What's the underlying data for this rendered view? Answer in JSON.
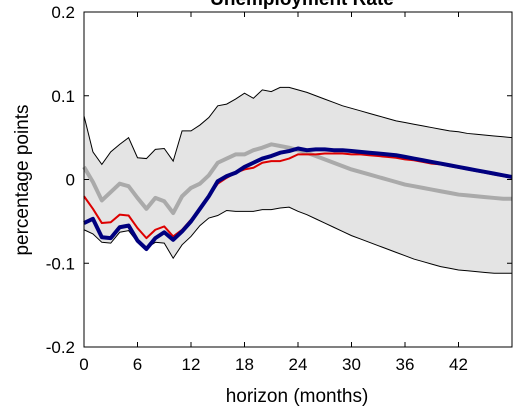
{
  "chart_data": {
    "type": "line",
    "title": "Unemployment Rate",
    "xlabel": "horizon (months)",
    "ylabel": "percentage points",
    "xlim": [
      0,
      48
    ],
    "ylim": [
      -0.2,
      0.2
    ],
    "xticks": [
      0,
      6,
      12,
      18,
      24,
      30,
      36,
      42
    ],
    "yticks": [
      -0.2,
      -0.1,
      0,
      0.1,
      0.2
    ],
    "ytick_labels": [
      "-0.2",
      "-0.1",
      "0",
      "0.1",
      "0.2"
    ],
    "grid": false,
    "legend": "none",
    "x": [
      0,
      1,
      2,
      3,
      4,
      5,
      6,
      7,
      8,
      9,
      10,
      11,
      12,
      13,
      14,
      15,
      16,
      17,
      18,
      19,
      20,
      21,
      22,
      23,
      24,
      25,
      26,
      27,
      28,
      29,
      30,
      31,
      32,
      33,
      34,
      35,
      36,
      37,
      38,
      39,
      40,
      41,
      42,
      43,
      44,
      45,
      46,
      47,
      48
    ],
    "band": {
      "upper": [
        0.076,
        0.033,
        0.018,
        0.033,
        0.042,
        0.05,
        0.026,
        0.025,
        0.036,
        0.037,
        0.022,
        0.058,
        0.058,
        0.065,
        0.074,
        0.088,
        0.09,
        0.096,
        0.103,
        0.097,
        0.107,
        0.105,
        0.11,
        0.11,
        0.107,
        0.104,
        0.1,
        0.096,
        0.092,
        0.088,
        0.085,
        0.082,
        0.079,
        0.076,
        0.073,
        0.07,
        0.068,
        0.066,
        0.064,
        0.062,
        0.06,
        0.058,
        0.057,
        0.055,
        0.054,
        0.053,
        0.052,
        0.051,
        0.05
      ],
      "lower": [
        -0.06,
        -0.065,
        -0.075,
        -0.076,
        -0.063,
        -0.061,
        -0.075,
        -0.082,
        -0.075,
        -0.076,
        -0.094,
        -0.078,
        -0.068,
        -0.055,
        -0.046,
        -0.043,
        -0.037,
        -0.038,
        -0.038,
        -0.038,
        -0.036,
        -0.036,
        -0.034,
        -0.033,
        -0.038,
        -0.042,
        -0.047,
        -0.052,
        -0.057,
        -0.062,
        -0.067,
        -0.071,
        -0.075,
        -0.079,
        -0.083,
        -0.087,
        -0.091,
        -0.095,
        -0.098,
        -0.101,
        -0.104,
        -0.106,
        -0.108,
        -0.109,
        -0.11,
        -0.111,
        -0.112,
        -0.112,
        -0.112
      ]
    },
    "series": [
      {
        "color": "#aaaaaa",
        "values": [
          0.015,
          -0.003,
          -0.025,
          -0.015,
          -0.005,
          -0.008,
          -0.022,
          -0.035,
          -0.022,
          -0.026,
          -0.04,
          -0.02,
          -0.01,
          -0.005,
          0.005,
          0.02,
          0.025,
          0.03,
          0.03,
          0.035,
          0.038,
          0.042,
          0.04,
          0.038,
          0.035,
          0.032,
          0.028,
          0.024,
          0.02,
          0.016,
          0.012,
          0.009,
          0.006,
          0.003,
          0.0,
          -0.003,
          -0.006,
          -0.008,
          -0.01,
          -0.012,
          -0.014,
          -0.016,
          -0.018,
          -0.019,
          -0.02,
          -0.021,
          -0.022,
          -0.023,
          -0.023
        ]
      },
      {
        "color": "#dd0000",
        "values": [
          -0.02,
          -0.035,
          -0.052,
          -0.051,
          -0.042,
          -0.043,
          -0.058,
          -0.07,
          -0.06,
          -0.056,
          -0.068,
          -0.06,
          -0.048,
          -0.035,
          -0.02,
          -0.005,
          0.002,
          0.008,
          0.012,
          0.014,
          0.02,
          0.022,
          0.022,
          0.025,
          0.03,
          0.03,
          0.03,
          0.031,
          0.031,
          0.031,
          0.03,
          0.03,
          0.029,
          0.028,
          0.027,
          0.026,
          0.024,
          0.023,
          0.021,
          0.019,
          0.018,
          0.016,
          0.014,
          0.012,
          0.01,
          0.008,
          0.006,
          0.004,
          0.002
        ]
      },
      {
        "color": "#00007f",
        "values": [
          -0.052,
          -0.047,
          -0.069,
          -0.07,
          -0.057,
          -0.055,
          -0.073,
          -0.083,
          -0.07,
          -0.063,
          -0.072,
          -0.062,
          -0.05,
          -0.035,
          -0.02,
          -0.002,
          0.004,
          0.008,
          0.015,
          0.02,
          0.025,
          0.028,
          0.032,
          0.034,
          0.037,
          0.035,
          0.036,
          0.036,
          0.035,
          0.035,
          0.034,
          0.033,
          0.032,
          0.031,
          0.03,
          0.029,
          0.027,
          0.025,
          0.023,
          0.021,
          0.019,
          0.017,
          0.015,
          0.013,
          0.011,
          0.009,
          0.007,
          0.005,
          0.003
        ]
      }
    ]
  }
}
